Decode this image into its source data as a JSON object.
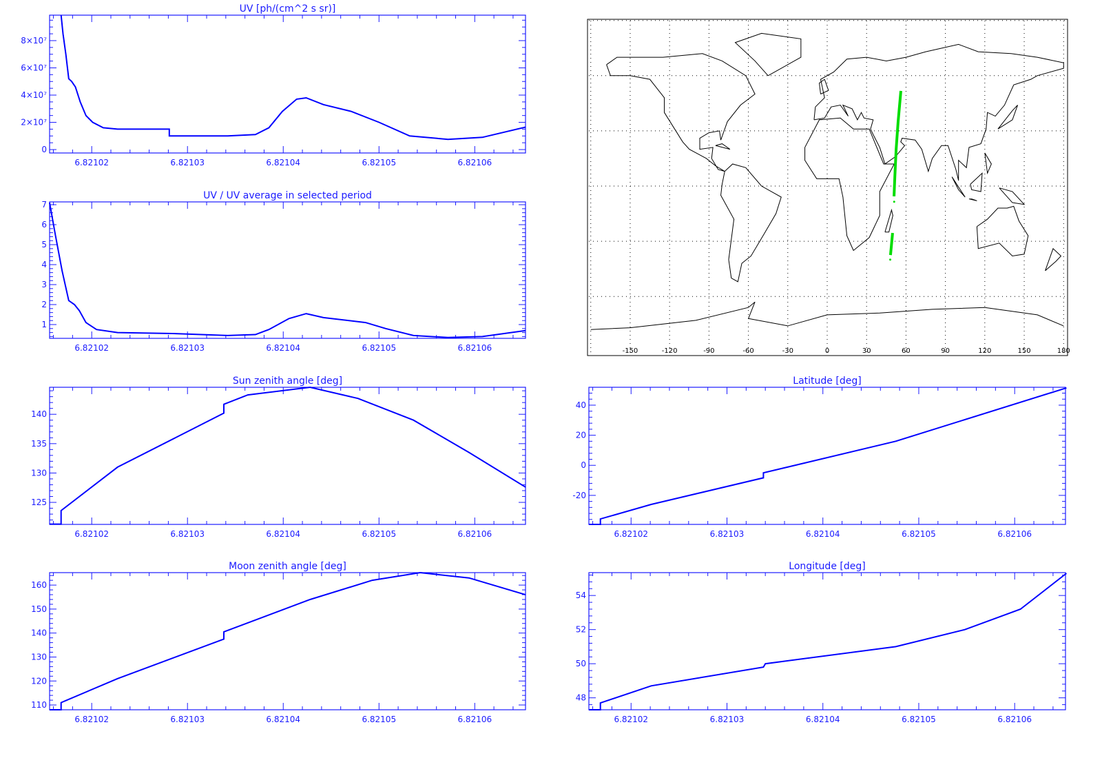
{
  "colors": {
    "axis": "#1a1aff",
    "series": "#0000ff",
    "track": "#00dd00",
    "coast": "#000000"
  },
  "x_ticks": [
    "6.82102",
    "6.82103",
    "6.82104",
    "6.82105",
    "6.82106"
  ],
  "x_tick_values": [
    6.82102,
    6.82103,
    6.82104,
    6.82105,
    6.82106
  ],
  "chart_data": [
    {
      "id": "uv",
      "type": "line",
      "title": "UV [ph/(cm^2 s sr)]",
      "xlim": [
        6.8210156,
        6.8210653
      ],
      "ylim": [
        -2500000,
        98700000
      ],
      "yticks": [
        0,
        20000000,
        40000000,
        60000000,
        80000000
      ],
      "ytick_labels": [
        "0",
        "2×10⁷",
        "4×10⁷",
        "6×10⁷",
        "8×10⁷"
      ],
      "x": [
        6.8210168,
        6.821017,
        6.8210173,
        6.8210176,
        6.8210179,
        6.8210183,
        6.8210188,
        6.8210194,
        6.8210201,
        6.8210212,
        6.8210227,
        6.8210281,
        6.8210281,
        6.8210342,
        6.8210371,
        6.8210385,
        6.8210399,
        6.8210414,
        6.8210424,
        6.8210442,
        6.8210471,
        6.82105,
        6.8210532,
        6.8210572,
        6.8210608,
        6.8210653
      ],
      "y": [
        98700000,
        85000000,
        70000000,
        52000000,
        50000000,
        46000000,
        35000000,
        25000000,
        20000000,
        16000000,
        15000000,
        15000000,
        10000000,
        10000000,
        11000000,
        16000000,
        28000000,
        37000000,
        38000000,
        33000000,
        28000000,
        20000000,
        10000000,
        7500000,
        9000000,
        16500000
      ]
    },
    {
      "id": "ratio",
      "type": "line",
      "title": "UV / UV average in selected period",
      "xlim": [
        6.8210156,
        6.8210653
      ],
      "ylim": [
        0.31,
        7.14
      ],
      "yticks": [
        1,
        2,
        3,
        4,
        5,
        6,
        7
      ],
      "ytick_labels": [
        "1",
        "2",
        "3",
        "4",
        "5",
        "6",
        "7"
      ],
      "x": [
        6.8210156,
        6.8210162,
        6.8210169,
        6.8210176,
        6.8210182,
        6.8210187,
        6.8210194,
        6.8210205,
        6.8210227,
        6.8210284,
        6.8210342,
        6.8210371,
        6.8210385,
        6.8210406,
        6.8210424,
        6.8210442,
        6.8210486,
        6.8210507,
        6.8210536,
        6.8210572,
        6.8210608,
        6.8210653
      ],
      "y": [
        7.1,
        5.5,
        3.7,
        2.2,
        2.0,
        1.7,
        1.1,
        0.75,
        0.6,
        0.55,
        0.45,
        0.5,
        0.75,
        1.3,
        1.55,
        1.35,
        1.1,
        0.8,
        0.45,
        0.35,
        0.4,
        0.7
      ]
    },
    {
      "id": "sun",
      "type": "line",
      "title": "Sun zenith angle [deg]",
      "xlim": [
        6.8210156,
        6.8210653
      ],
      "ylim": [
        121.25,
        144.6
      ],
      "yticks": [
        125,
        130,
        135,
        140
      ],
      "ytick_labels": [
        "125",
        "130",
        "135",
        "140"
      ],
      "x": [
        6.8210156,
        6.8210168,
        6.8210168,
        6.8210227,
        6.8210338,
        6.8210338,
        6.8210363,
        6.8210428,
        6.8210478,
        6.8210536,
        6.8210594,
        6.8210653
      ],
      "y": [
        121.3,
        121.3,
        123.6,
        131,
        140.2,
        141.7,
        143.3,
        144.6,
        142.7,
        139,
        133.5,
        127.6
      ]
    },
    {
      "id": "moon",
      "type": "line",
      "title": "Moon zenith angle [deg]",
      "xlim": [
        6.8210156,
        6.8210653
      ],
      "ylim": [
        108,
        165.2
      ],
      "yticks": [
        110,
        120,
        130,
        140,
        150,
        160
      ],
      "ytick_labels": [
        "110",
        "120",
        "130",
        "140",
        "150",
        "160"
      ],
      "x": [
        6.8210156,
        6.8210168,
        6.8210168,
        6.8210227,
        6.8210338,
        6.8210338,
        6.8210428,
        6.8210493,
        6.8210543,
        6.8210594,
        6.8210653
      ],
      "y": [
        108,
        108,
        111,
        121,
        137.5,
        140.5,
        154,
        162,
        165.2,
        163,
        156
      ]
    },
    {
      "id": "lat",
      "type": "line",
      "title": "Latitude [deg]",
      "xlim": [
        6.8210156,
        6.8210653
      ],
      "ylim": [
        -39.3,
        51.9
      ],
      "yticks": [
        -20,
        0,
        20,
        40
      ],
      "ytick_labels": [
        "-20",
        "0",
        "20",
        "40"
      ],
      "x": [
        6.8210156,
        6.8210168,
        6.8210168,
        6.8210221,
        6.8210338,
        6.8210338,
        6.8210476,
        6.8210654
      ],
      "y": [
        -39.3,
        -39.3,
        -35.7,
        -26,
        -8.3,
        -5,
        16,
        51.5
      ]
    },
    {
      "id": "lon",
      "type": "line",
      "title": "Longitude [deg]",
      "xlim": [
        6.8210156,
        6.8210653
      ],
      "ylim": [
        47.3,
        55.34
      ],
      "yticks": [
        48,
        50,
        52,
        54
      ],
      "ytick_labels": [
        "48",
        "50",
        "52",
        "54"
      ],
      "x": [
        6.8210156,
        6.8210168,
        6.8210168,
        6.8210221,
        6.8210338,
        6.821034,
        6.8210476,
        6.8210548,
        6.8210606,
        6.8210654
      ],
      "y": [
        47.3,
        47.3,
        47.7,
        48.7,
        49.8,
        50.0,
        51.0,
        52.0,
        53.2,
        55.3
      ]
    }
  ],
  "map": {
    "lon_ticks": [
      "-150",
      "-120",
      "-90",
      "-60",
      "-30",
      "0",
      "30",
      "60",
      "90",
      "120",
      "150",
      "180"
    ],
    "lon_values": [
      -150,
      -120,
      -90,
      -60,
      -30,
      0,
      30,
      60,
      90,
      120,
      150,
      180
    ],
    "track": [
      [
        56.1,
        51.7
      ],
      [
        54,
        35
      ],
      [
        52.5,
        20
      ],
      [
        51.5,
        5
      ],
      [
        50.9,
        -5.6
      ]
    ],
    "track2": [
      [
        49.8,
        -25.5
      ],
      [
        48.2,
        -37.5
      ]
    ],
    "track_dots": [
      [
        51,
        -8.5
      ],
      [
        48,
        -40
      ]
    ]
  }
}
